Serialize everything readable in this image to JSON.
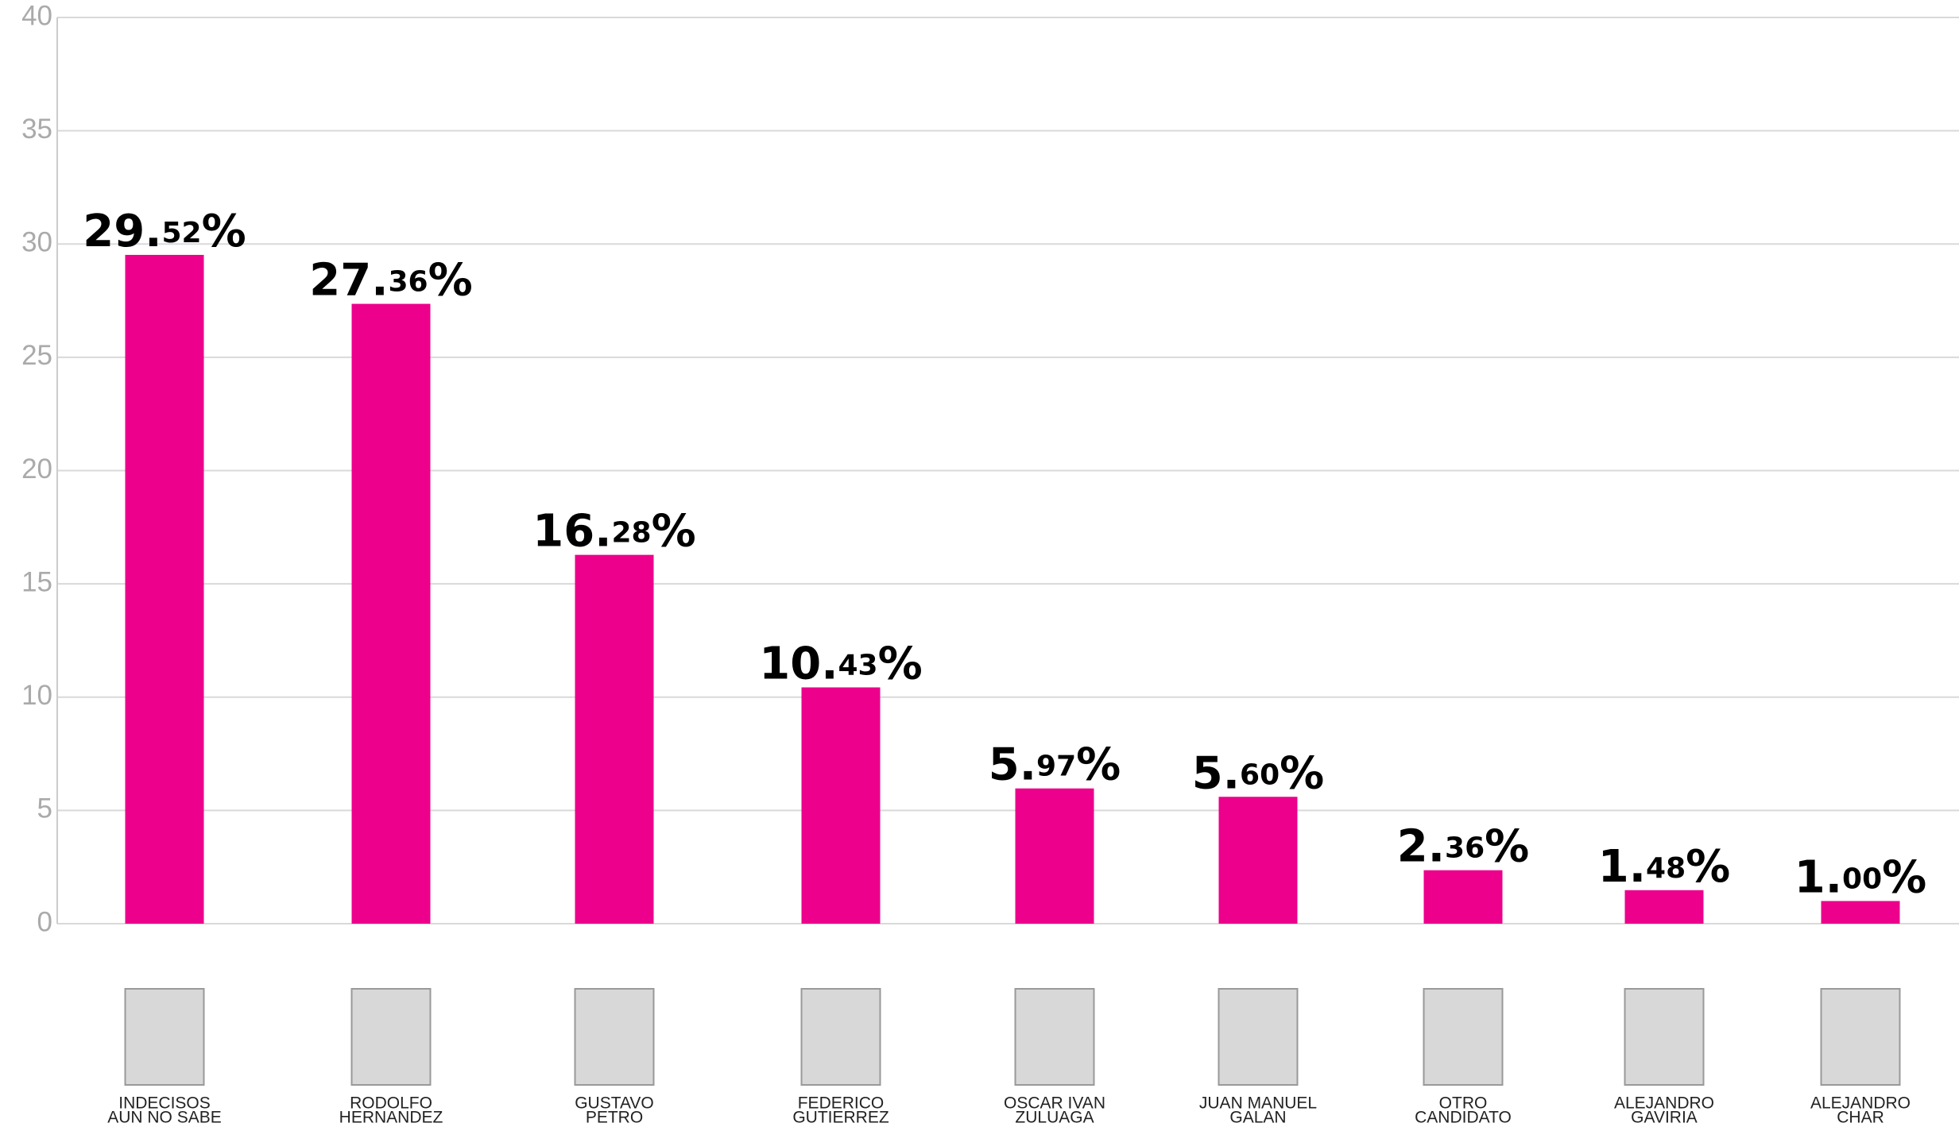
{
  "chart_data": {
    "type": "bar",
    "categories": [
      [
        "INDECISOS",
        "AUN NO SABE"
      ],
      [
        "RODOLFO",
        "HERNANDEZ"
      ],
      [
        "GUSTAVO",
        "PETRO"
      ],
      [
        "FEDERICO",
        "GUTIERREZ"
      ],
      [
        "OSCAR IVAN",
        "ZULUAGA"
      ],
      [
        "JUAN MANUEL",
        "GALAN"
      ],
      [
        "OTRO",
        "CANDIDATO"
      ],
      [
        "ALEJANDRO",
        "GAVIRIA"
      ],
      [
        "ALEJANDRO",
        "CHAR"
      ]
    ],
    "values": [
      29.52,
      27.36,
      16.28,
      10.43,
      5.97,
      5.6,
      2.36,
      1.48,
      1.0
    ],
    "value_labels": [
      "29.52%",
      "27.36%",
      "16.28%",
      "10.43%",
      "5.97%",
      "5.60%",
      "2.36%",
      "1.48%",
      "1.00%"
    ],
    "color": "#ec008c",
    "ylim": [
      0,
      40
    ],
    "yticks": [
      0,
      5,
      10,
      15,
      20,
      25,
      30,
      35,
      40
    ],
    "grid": true
  }
}
